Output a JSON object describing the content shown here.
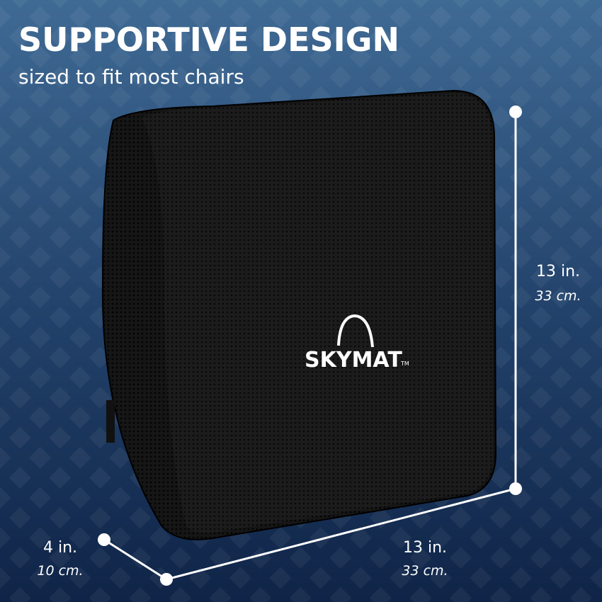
{
  "header": {
    "title": "SUPPORTIVE DESIGN",
    "subtitle": "sized to fit most chairs"
  },
  "logo": {
    "brand": "SKYMAT",
    "mark": "TM"
  },
  "dimensions": {
    "height": {
      "imperial": "13 in.",
      "metric": "33 cm."
    },
    "width": {
      "imperial": "13 in.",
      "metric": "33 cm."
    },
    "depth": {
      "imperial": "4 in.",
      "metric": "10 cm."
    }
  }
}
